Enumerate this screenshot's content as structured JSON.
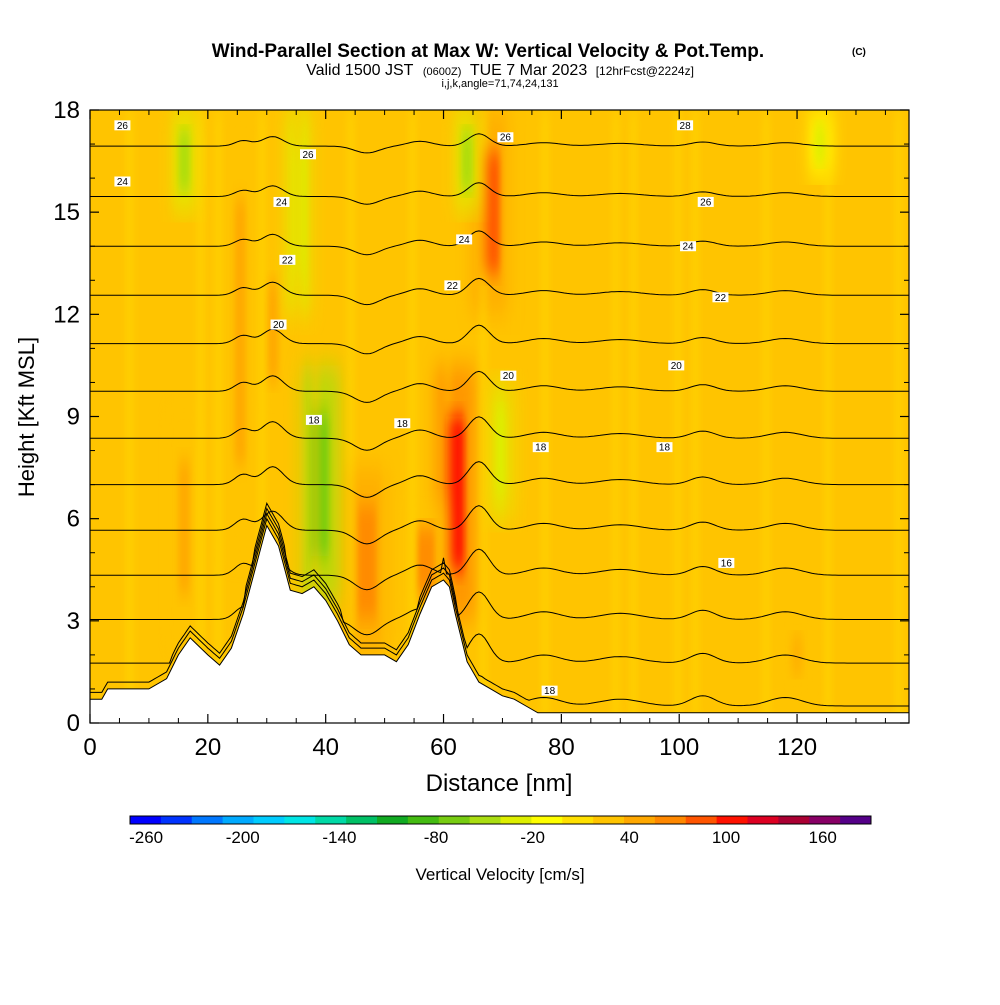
{
  "header": {
    "title": "Wind-Parallel Section at Max W: Vertical Velocity & Pot.Temp.",
    "title_mark": "(C)",
    "valid_prefix": "Valid 1500 JST",
    "valid_utc": "(0600Z)",
    "valid_date": "TUE 7 Mar 2023",
    "forecast": "[12hrFcst@2224z]",
    "params": "i,j,k,angle=71,74,24,131"
  },
  "chart_data": {
    "type": "heatmap",
    "title": "Wind-Parallel Section at Max W: Vertical Velocity & Pot.Temp.",
    "xlabel": "Distance [nm]",
    "ylabel": "Height [Kft MSL]",
    "xlim": [
      0,
      139
    ],
    "ylim": [
      0,
      18
    ],
    "x_ticks": [
      0,
      20,
      40,
      60,
      80,
      100,
      120
    ],
    "y_ticks": [
      0,
      3,
      6,
      9,
      12,
      15,
      18
    ],
    "colorbar": {
      "label": "Vertical Velocity [cm/s]",
      "tick_values": [
        -260,
        -200,
        -140,
        -80,
        -20,
        40,
        100,
        160
      ],
      "tick_labels": [
        "-260",
        "-200",
        "-140",
        "-80",
        "-20",
        "40",
        "100",
        "160"
      ],
      "min": -270,
      "max": 190,
      "colors": [
        "#0000ff",
        "#0033ff",
        "#0077ff",
        "#00aaff",
        "#00ccff",
        "#00e5e5",
        "#00d9a6",
        "#00c066",
        "#11aa22",
        "#44bb11",
        "#77cc11",
        "#aadd11",
        "#ddee00",
        "#ffff00",
        "#ffe000",
        "#ffc400",
        "#ffa800",
        "#ff8800",
        "#ff5500",
        "#ff1100",
        "#dd0022",
        "#aa0033",
        "#880066",
        "#550088"
      ]
    },
    "terrain_kft": {
      "x": [
        0,
        2,
        3,
        10,
        13,
        15,
        17,
        20,
        22,
        24,
        26,
        28,
        30,
        32,
        34,
        36,
        38,
        40,
        42,
        44,
        46,
        48,
        50,
        52,
        54,
        56,
        58,
        60,
        61,
        62,
        63,
        64,
        66,
        68,
        70,
        72,
        74,
        76,
        78,
        80,
        139
      ],
      "h": [
        0.7,
        0.7,
        1.0,
        1.0,
        1.3,
        2.0,
        2.5,
        2.0,
        1.7,
        2.2,
        3.2,
        4.5,
        5.8,
        5.2,
        3.9,
        3.8,
        4.0,
        3.6,
        3.0,
        2.3,
        2.0,
        2.0,
        2.0,
        1.8,
        2.3,
        3.2,
        4.0,
        4.2,
        4.0,
        3.2,
        2.5,
        1.8,
        1.2,
        1.0,
        0.8,
        0.7,
        0.5,
        0.3,
        0.3,
        0.3,
        0.3
      ]
    },
    "updraft_cm_s": [
      {
        "x": 62,
        "z_min": 3,
        "z_max": 10.5,
        "peak": 110
      },
      {
        "x": 47,
        "z_min": 2,
        "z_max": 7.5,
        "peak": 70
      },
      {
        "x": 57,
        "z_min": 3,
        "z_max": 6.5,
        "peak": 60
      },
      {
        "x": 68,
        "z_min": 12,
        "z_max": 18,
        "peak": 90
      },
      {
        "x": 25.5,
        "z_min": 5,
        "z_max": 18,
        "peak": 50
      },
      {
        "x": 31,
        "z_min": 9,
        "z_max": 14,
        "peak": 50
      },
      {
        "x": 16,
        "z_min": 2.5,
        "z_max": 9,
        "peak": 40
      },
      {
        "x": 120,
        "z_min": 1,
        "z_max": 3,
        "peak": 40
      }
    ],
    "downdraft_cm_s": [
      {
        "x": 39,
        "z_min": 3.5,
        "z_max": 10.5,
        "peak": -70
      },
      {
        "x": 35.5,
        "z_min": 12,
        "z_max": 18,
        "peak": -40
      },
      {
        "x": 16,
        "z_min": 15,
        "z_max": 18,
        "peak": -50
      },
      {
        "x": 70,
        "z_min": 6,
        "z_max": 10,
        "peak": -40
      },
      {
        "x": 64,
        "z_min": 15,
        "z_max": 18,
        "peak": -45
      },
      {
        "x": 124,
        "z_min": 16,
        "z_max": 18,
        "peak": -30
      }
    ],
    "theta_levels": [
      17,
      18,
      19,
      20,
      21,
      22,
      23,
      24,
      25,
      26,
      27,
      28,
      29,
      30
    ],
    "theta_label_text": [
      {
        "text": "26",
        "x": 5.5,
        "y": 17.55
      },
      {
        "text": "26",
        "x": 37,
        "y": 16.7
      },
      {
        "text": "24",
        "x": 5.5,
        "y": 15.9
      },
      {
        "text": "24",
        "x": 32.5,
        "y": 15.3
      },
      {
        "text": "22",
        "x": 33.5,
        "y": 13.6
      },
      {
        "text": "20",
        "x": 32,
        "y": 11.7
      },
      {
        "text": "18",
        "x": 38,
        "y": 8.9
      },
      {
        "text": "18",
        "x": 53,
        "y": 8.8
      },
      {
        "text": "26",
        "x": 70.5,
        "y": 17.2
      },
      {
        "text": "24",
        "x": 63.5,
        "y": 14.2
      },
      {
        "text": "22",
        "x": 61.5,
        "y": 12.85
      },
      {
        "text": "20",
        "x": 71,
        "y": 10.2
      },
      {
        "text": "18",
        "x": 76.5,
        "y": 8.1
      },
      {
        "text": "18",
        "x": 78,
        "y": 0.95
      },
      {
        "text": "28",
        "x": 101,
        "y": 17.55
      },
      {
        "text": "26",
        "x": 104.5,
        "y": 15.3
      },
      {
        "text": "24",
        "x": 101.5,
        "y": 14.0
      },
      {
        "text": "22",
        "x": 107,
        "y": 12.5
      },
      {
        "text": "20",
        "x": 99.5,
        "y": 10.5
      },
      {
        "text": "18",
        "x": 97.5,
        "y": 8.1
      },
      {
        "text": "16",
        "x": 108,
        "y": 4.7
      }
    ]
  },
  "colors": {
    "background": "#ffffff",
    "axis": "#000000",
    "contour": "#000000",
    "field_base": "#ffc400"
  }
}
